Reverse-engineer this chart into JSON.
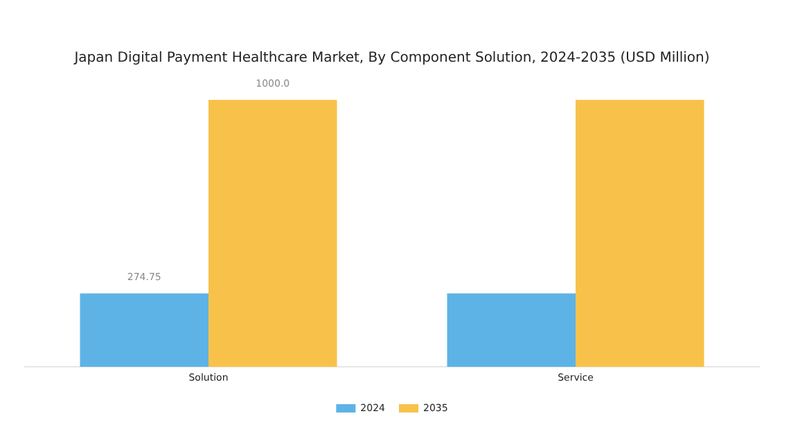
{
  "chart_data": {
    "type": "bar",
    "title": "Japan Digital Payment Healthcare Market, By Component Solution, 2024-2035 (USD Million)",
    "categories": [
      "Solution",
      "Service"
    ],
    "series": [
      {
        "name": "2024",
        "color": "#5db3e6",
        "values": [
          274.75,
          274.75
        ],
        "value_labels": [
          "274.75",
          null
        ]
      },
      {
        "name": "2035",
        "color": "#f8c24a",
        "values": [
          1000.0,
          1000.0
        ],
        "value_labels": [
          "1000.0",
          null
        ]
      }
    ],
    "grid": false,
    "legend": "bottom"
  }
}
